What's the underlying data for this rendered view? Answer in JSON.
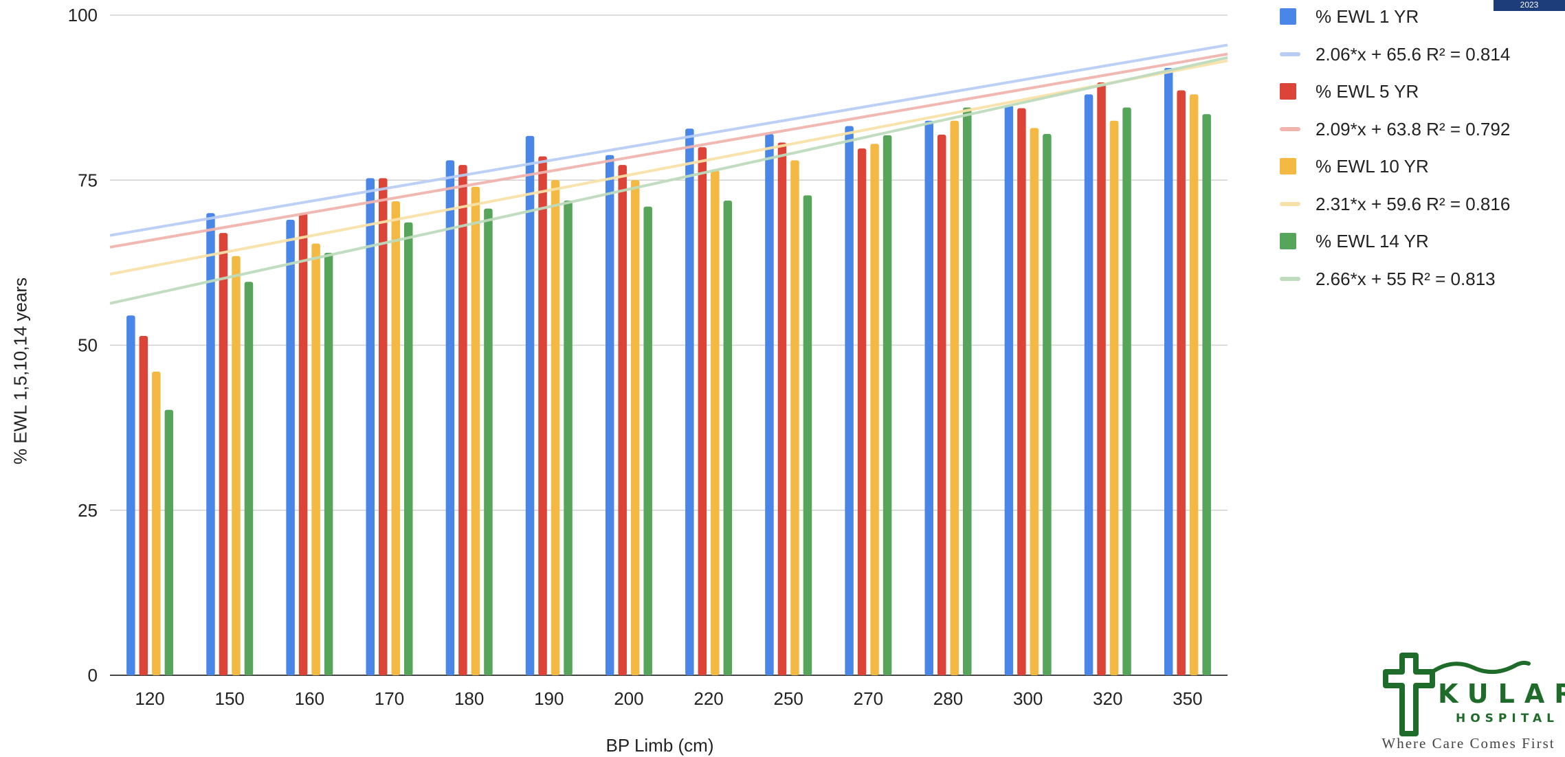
{
  "badge": {
    "text": "2023"
  },
  "logo": {
    "name_top": "KULAR",
    "name_bottom": "HOSPITAL",
    "tagline": "Where Care Comes First"
  },
  "chart_data": {
    "type": "bar",
    "xlabel": "BP Limb (cm)",
    "ylabel": "% EWL 1,5,10,14 years",
    "ylim": [
      0,
      100
    ],
    "yticks": [
      0,
      25,
      50,
      75,
      100
    ],
    "grid": true,
    "legend_position": "right",
    "categories": [
      "120",
      "150",
      "160",
      "170",
      "180",
      "190",
      "200",
      "220",
      "250",
      "270",
      "280",
      "300",
      "320",
      "350"
    ],
    "series": [
      {
        "name": "% EWL 1 YR",
        "color": "#4a86e8",
        "values": [
          54.5,
          70,
          69,
          75.3,
          78,
          81.7,
          78.8,
          82.8,
          82,
          83.2,
          84,
          86.3,
          88,
          92
        ],
        "trend": {
          "label": "2.06*x + 65.6 R² = 0.814",
          "slope": 2.06,
          "intercept": 65.6,
          "color": "#b7cdf3"
        }
      },
      {
        "name": "% EWL 5 YR",
        "color": "#db4437",
        "values": [
          51.4,
          67,
          70,
          75.3,
          77.3,
          78.6,
          77.3,
          80,
          80.7,
          79.8,
          81.9,
          85.9,
          89.8,
          88.6
        ],
        "trend": {
          "label": "2.09*x + 63.8 R² = 0.792",
          "slope": 2.09,
          "intercept": 63.8,
          "color": "#f0b4ae"
        }
      },
      {
        "name": "% EWL 10 YR",
        "color": "#f4b942",
        "values": [
          46,
          63.5,
          65.4,
          71.8,
          74,
          75,
          75,
          76.5,
          78,
          80.5,
          84,
          82.9,
          84,
          88
        ],
        "trend": {
          "label": "2.31*x + 59.6 R² = 0.816",
          "slope": 2.31,
          "intercept": 59.6,
          "color": "#f8e1a8"
        }
      },
      {
        "name": "% EWL 14 YR",
        "color": "#57a55a",
        "values": [
          40.2,
          59.6,
          64,
          68.6,
          70.7,
          71.9,
          71,
          71.9,
          72.7,
          81.8,
          86,
          82,
          86,
          85
        ],
        "trend": {
          "label": "2.66*x + 55 R² = 0.813",
          "slope": 2.66,
          "intercept": 55,
          "color": "#bddbbd"
        }
      }
    ]
  }
}
